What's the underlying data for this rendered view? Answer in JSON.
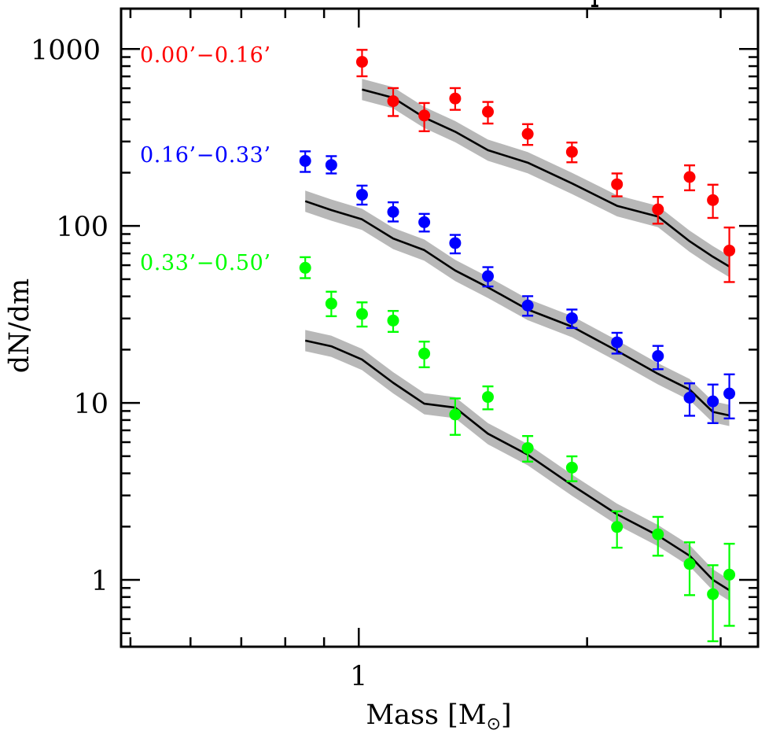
{
  "chart_data": {
    "type": "scatter",
    "xlabel": "Mass [M⊙]",
    "xlabel_parts": {
      "main": "Mass [M",
      "sub": "⊙",
      "close": "]"
    },
    "ylabel": "dN/dm",
    "xscale": "log",
    "yscale": "log",
    "xlim": [
      0.486,
      3.36
    ],
    "ylim": [
      0.419,
      1690
    ],
    "x_ticks": [
      {
        "value": 1,
        "label": "1"
      }
    ],
    "x_minor_ticks": [
      0.5,
      0.6,
      0.7,
      0.8,
      0.9,
      2,
      3
    ],
    "y_ticks": [
      {
        "value": 1000,
        "label": "1000"
      },
      {
        "value": 100,
        "label": "100"
      },
      {
        "value": 10,
        "label": "10"
      },
      {
        "value": 1,
        "label": "1"
      }
    ],
    "grid": false,
    "legend": "top-left",
    "model_style": {
      "line_color": "#000000",
      "band_color": "#b8b8b8"
    },
    "series": [
      {
        "name": "0.00’−0.16’",
        "color": "#ff0000",
        "x": [
          1.01,
          1.11,
          1.22,
          1.34,
          1.48,
          1.67,
          1.91,
          2.19,
          2.48,
          2.73,
          2.93,
          3.08
        ],
        "y": [
          846,
          507,
          421,
          525,
          442,
          331,
          262,
          172,
          124,
          189,
          140,
          72.6
        ],
        "y_lower": [
          701,
          418,
          343,
          453,
          379,
          287,
          229,
          147,
          103,
          159,
          111,
          48.2
        ],
        "y_upper": [
          989,
          601,
          495,
          601,
          502,
          376,
          296,
          198,
          146,
          220,
          171,
          98
        ],
        "model_x": [
          1.01,
          1.11,
          1.22,
          1.34,
          1.48,
          1.67,
          1.91,
          2.19,
          2.48,
          2.73,
          2.93,
          3.08
        ],
        "model_y": [
          590,
          530,
          410,
          341,
          268,
          228,
          174,
          130,
          113,
          82,
          67,
          59
        ],
        "model_band_dex": 0.06
      },
      {
        "name": "0.16’−0.33’",
        "color": "#0000ff",
        "x": [
          0.85,
          0.92,
          1.01,
          1.11,
          1.22,
          1.34,
          1.48,
          1.67,
          1.91,
          2.19,
          2.48,
          2.73,
          2.93,
          3.08
        ],
        "y": [
          233,
          221,
          150,
          120,
          105,
          80,
          52,
          35.5,
          30.1,
          22.0,
          18.4,
          10.7,
          10.2,
          11.3
        ],
        "y_lower": [
          202,
          198,
          132,
          106,
          93,
          70,
          45.5,
          31.1,
          26.5,
          19.0,
          15.5,
          8.46,
          7.69,
          8.17
        ],
        "y_upper": [
          264,
          248,
          169,
          136,
          117,
          89,
          58.5,
          40.1,
          33.7,
          24.9,
          21.0,
          12.9,
          12.7,
          14.5
        ],
        "model_x": [
          0.85,
          0.92,
          1.01,
          1.11,
          1.22,
          1.34,
          1.48,
          1.67,
          1.91,
          2.19,
          2.48,
          2.73,
          2.93,
          3.08
        ],
        "model_y": [
          138,
          123,
          109,
          85,
          73,
          56,
          45,
          33.7,
          27,
          19.7,
          14.6,
          11.9,
          8.9,
          8.5
        ],
        "model_band_dex": 0.06
      },
      {
        "name": "0.33’−0.50’",
        "color": "#00ff00",
        "x": [
          0.85,
          0.92,
          1.01,
          1.11,
          1.22,
          1.34,
          1.48,
          1.67,
          1.91,
          2.19,
          2.48,
          2.73,
          2.93,
          3.08
        ],
        "y": [
          58,
          36.4,
          31.8,
          29.2,
          19.0,
          8.6,
          10.8,
          5.56,
          4.31,
          1.99,
          1.81,
          1.23,
          0.83,
          1.07
        ],
        "y_lower": [
          50.7,
          30.9,
          27,
          25.2,
          15.9,
          6.6,
          9.2,
          4.66,
          3.61,
          1.52,
          1.37,
          0.82,
          0.45,
          0.55
        ],
        "y_upper": [
          66.6,
          42.5,
          37,
          33.1,
          22.2,
          10.6,
          12.4,
          6.5,
          4.99,
          2.44,
          2.27,
          1.63,
          1.21,
          1.6
        ],
        "model_x": [
          0.85,
          0.92,
          1.01,
          1.11,
          1.22,
          1.34,
          1.48,
          1.67,
          1.91,
          2.19,
          2.48,
          2.73,
          2.93,
          3.08
        ],
        "model_y": [
          22.5,
          20.9,
          17.6,
          13.0,
          9.9,
          9.4,
          6.7,
          5.1,
          3.43,
          2.35,
          1.78,
          1.37,
          1.0,
          0.875
        ],
        "model_band_dex": 0.06
      }
    ]
  }
}
